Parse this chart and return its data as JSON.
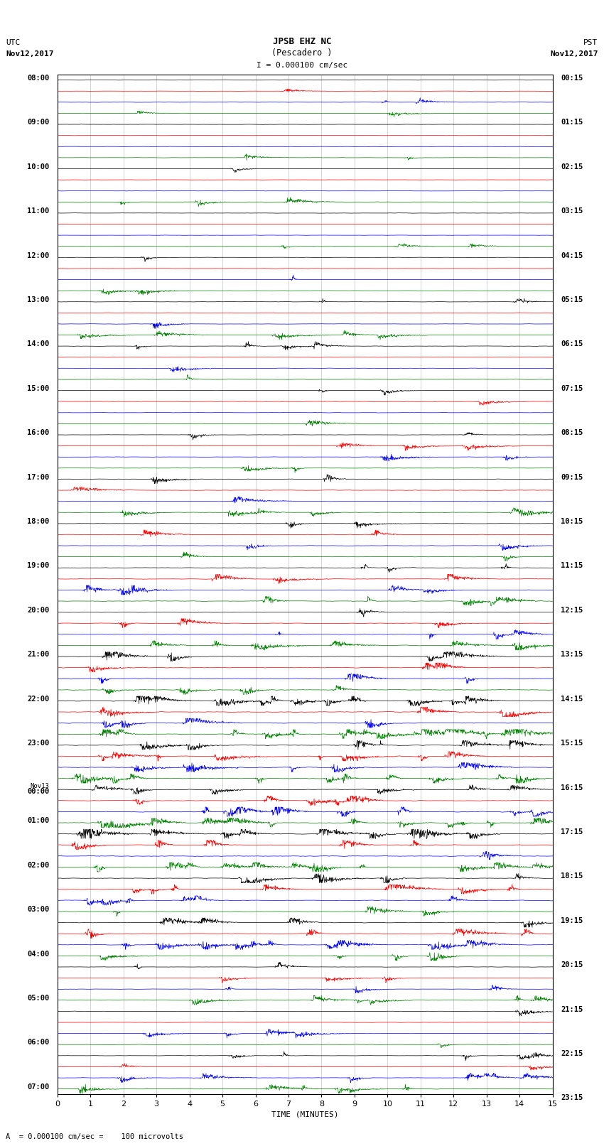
{
  "title_line1": "JPSB EHZ NC",
  "title_line2": "(Pescadero )",
  "scale_label": "I = 0.000100 cm/sec",
  "left_label_line1": "UTC",
  "left_label_line2": "Nov12,2017",
  "right_label_line1": "PST",
  "right_label_line2": "Nov12,2017",
  "bottom_label": "TIME (MINUTES)",
  "bottom_note": "A  = 0.000100 cm/sec =    100 microvolts",
  "xlabel_ticks": [
    0,
    1,
    2,
    3,
    4,
    5,
    6,
    7,
    8,
    9,
    10,
    11,
    12,
    13,
    14,
    15
  ],
  "utc_times": [
    "08:00",
    "",
    "",
    "",
    "09:00",
    "",
    "",
    "",
    "10:00",
    "",
    "",
    "",
    "11:00",
    "",
    "",
    "",
    "12:00",
    "",
    "",
    "",
    "13:00",
    "",
    "",
    "",
    "14:00",
    "",
    "",
    "",
    "15:00",
    "",
    "",
    "",
    "16:00",
    "",
    "",
    "",
    "17:00",
    "",
    "",
    "",
    "18:00",
    "",
    "",
    "",
    "19:00",
    "",
    "",
    "",
    "20:00",
    "",
    "",
    "",
    "21:00",
    "",
    "",
    "",
    "22:00",
    "",
    "",
    "",
    "23:00",
    "",
    "",
    "",
    "Nov13",
    "00:00",
    "",
    "",
    "01:00",
    "",
    "",
    "",
    "02:00",
    "",
    "",
    "",
    "03:00",
    "",
    "",
    "",
    "04:00",
    "",
    "",
    "",
    "05:00",
    "",
    "",
    "",
    "06:00",
    "",
    "",
    "",
    "07:00",
    "",
    ""
  ],
  "pst_times": [
    "00:15",
    "",
    "",
    "",
    "01:15",
    "",
    "",
    "",
    "02:15",
    "",
    "",
    "",
    "03:15",
    "",
    "",
    "",
    "04:15",
    "",
    "",
    "",
    "05:15",
    "",
    "",
    "",
    "06:15",
    "",
    "",
    "",
    "07:15",
    "",
    "",
    "",
    "08:15",
    "",
    "",
    "",
    "09:15",
    "",
    "",
    "",
    "10:15",
    "",
    "",
    "",
    "11:15",
    "",
    "",
    "",
    "12:15",
    "",
    "",
    "",
    "13:15",
    "",
    "",
    "",
    "14:15",
    "",
    "",
    "",
    "15:15",
    "",
    "",
    "",
    "16:15",
    "",
    "",
    "",
    "17:15",
    "",
    "",
    "",
    "18:15",
    "",
    "",
    "",
    "19:15",
    "",
    "",
    "",
    "20:15",
    "",
    "",
    "",
    "21:15",
    "",
    "",
    "",
    "22:15",
    "",
    "",
    "",
    "23:15",
    "",
    ""
  ],
  "colors": [
    "black",
    "red",
    "blue",
    "green"
  ],
  "bg_color": "white",
  "n_rows": 92,
  "fig_width": 8.5,
  "fig_height": 16.13,
  "dpi": 100
}
